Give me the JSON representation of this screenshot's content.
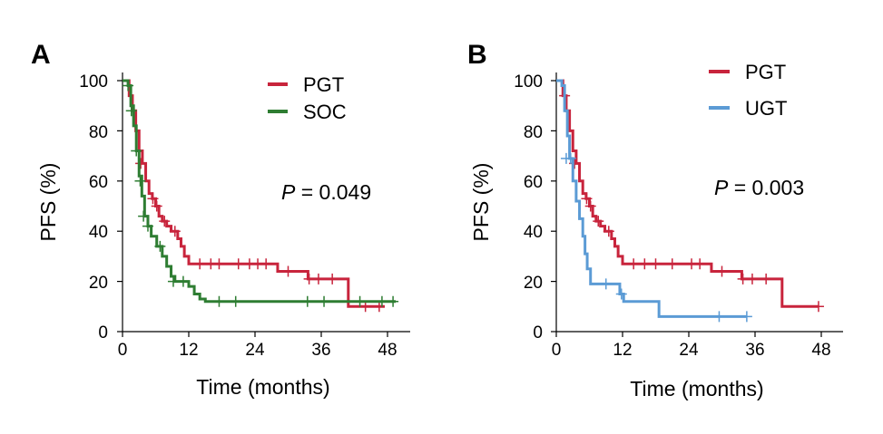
{
  "chart_data": [
    {
      "type": "line",
      "panel_label": "A",
      "xlabel": "Time (months)",
      "ylabel": "PFS (%)",
      "xticks": [
        0,
        12,
        24,
        36,
        48
      ],
      "yticks": [
        0,
        20,
        40,
        60,
        80,
        100
      ],
      "xlim": [
        0,
        52
      ],
      "ylim": [
        0,
        105
      ],
      "annotation": {
        "p_label": "P",
        "p_value": " = 0.049"
      },
      "legend_position": "top-right",
      "series": [
        {
          "name": "PGT",
          "color": "#c8243c",
          "steps": [
            [
              0,
              100
            ],
            [
              1.2,
              94
            ],
            [
              1.8,
              88
            ],
            [
              2.4,
              80
            ],
            [
              3,
              72
            ],
            [
              3.6,
              67
            ],
            [
              4.2,
              60
            ],
            [
              4.8,
              55
            ],
            [
              5.4,
              53
            ],
            [
              6,
              50
            ],
            [
              6.6,
              46
            ],
            [
              7.2,
              44
            ],
            [
              8,
              42
            ],
            [
              8.8,
              40
            ],
            [
              10,
              37
            ],
            [
              10.6,
              34
            ],
            [
              11.2,
              30
            ],
            [
              12,
              27
            ],
            [
              28,
              27
            ],
            [
              28.1,
              24
            ],
            [
              33.5,
              24
            ],
            [
              33.6,
              21
            ],
            [
              40.8,
              21
            ],
            [
              40.9,
              10
            ],
            [
              47.5,
              10
            ]
          ],
          "censor": [
            [
              3.3,
              67
            ],
            [
              5.5,
              53
            ],
            [
              6.2,
              50
            ],
            [
              7.6,
              44
            ],
            [
              9.5,
              40
            ],
            [
              14,
              27
            ],
            [
              16,
              27
            ],
            [
              17.5,
              27
            ],
            [
              21,
              27
            ],
            [
              23,
              27
            ],
            [
              24.5,
              27
            ],
            [
              26,
              27
            ],
            [
              30,
              24
            ],
            [
              33.8,
              21
            ],
            [
              35.5,
              21
            ],
            [
              38,
              21
            ],
            [
              44,
              10
            ],
            [
              46.5,
              10
            ]
          ]
        },
        {
          "name": "SOC",
          "color": "#2e7d32",
          "steps": [
            [
              0,
              100
            ],
            [
              1,
              98
            ],
            [
              1.5,
              90
            ],
            [
              2,
              82
            ],
            [
              2.5,
              72
            ],
            [
              3,
              62
            ],
            [
              3.5,
              54
            ],
            [
              4,
              46
            ],
            [
              4.6,
              42
            ],
            [
              5.2,
              38
            ],
            [
              6.2,
              34
            ],
            [
              7.2,
              30
            ],
            [
              8,
              26
            ],
            [
              8.8,
              22
            ],
            [
              9.5,
              20
            ],
            [
              12,
              18
            ],
            [
              13,
              15
            ],
            [
              14,
              13
            ],
            [
              15,
              12
            ],
            [
              49.5,
              12
            ]
          ],
          "censor": [
            [
              1,
              98
            ],
            [
              1.6,
              88
            ],
            [
              2.5,
              72
            ],
            [
              3.2,
              60
            ],
            [
              3.8,
              46
            ],
            [
              4.6,
              42
            ],
            [
              6.8,
              34
            ],
            [
              9.2,
              20
            ],
            [
              11,
              20
            ],
            [
              17.5,
              12
            ],
            [
              20.5,
              12
            ],
            [
              33.5,
              12
            ],
            [
              36.5,
              12
            ],
            [
              43,
              12
            ],
            [
              47,
              12
            ],
            [
              49,
              12
            ]
          ]
        }
      ]
    },
    {
      "type": "line",
      "panel_label": "B",
      "xlabel": "Time (months)",
      "ylabel": "PFS (%)",
      "xticks": [
        0,
        12,
        24,
        36,
        48
      ],
      "yticks": [
        0,
        20,
        40,
        60,
        80,
        100
      ],
      "xlim": [
        0,
        52
      ],
      "ylim": [
        0,
        105
      ],
      "annotation": {
        "p_label": "P",
        "p_value": " = 0.003"
      },
      "legend_position": "top-right",
      "series": [
        {
          "name": "PGT",
          "color": "#c8243c",
          "steps": [
            [
              0,
              100
            ],
            [
              1.2,
              94
            ],
            [
              1.8,
              88
            ],
            [
              2.4,
              80
            ],
            [
              3,
              72
            ],
            [
              3.6,
              67
            ],
            [
              4.2,
              60
            ],
            [
              4.8,
              55
            ],
            [
              5.4,
              53
            ],
            [
              6,
              50
            ],
            [
              6.6,
              46
            ],
            [
              7.2,
              44
            ],
            [
              8,
              42
            ],
            [
              8.8,
              40
            ],
            [
              10,
              37
            ],
            [
              10.6,
              34
            ],
            [
              11.2,
              30
            ],
            [
              12,
              27
            ],
            [
              28,
              27
            ],
            [
              28.1,
              24
            ],
            [
              33.5,
              24
            ],
            [
              33.6,
              21
            ],
            [
              40.8,
              21
            ],
            [
              40.9,
              10
            ],
            [
              47.5,
              10
            ]
          ],
          "censor": [
            [
              1.5,
              94
            ],
            [
              3.3,
              67
            ],
            [
              5.5,
              53
            ],
            [
              6.2,
              50
            ],
            [
              7.6,
              44
            ],
            [
              9.5,
              40
            ],
            [
              14,
              27
            ],
            [
              16,
              27
            ],
            [
              18,
              27
            ],
            [
              21,
              27
            ],
            [
              24.5,
              27
            ],
            [
              26,
              27
            ],
            [
              30,
              24
            ],
            [
              33.8,
              21
            ],
            [
              35.5,
              21
            ],
            [
              38,
              21
            ],
            [
              47.5,
              10
            ]
          ]
        },
        {
          "name": "UGT",
          "color": "#5b9bd5",
          "steps": [
            [
              0,
              100
            ],
            [
              1,
              98
            ],
            [
              1.5,
              88
            ],
            [
              2,
              78
            ],
            [
              2.4,
              69
            ],
            [
              3,
              60
            ],
            [
              3.6,
              52
            ],
            [
              4.2,
              45
            ],
            [
              4.8,
              38
            ],
            [
              5.2,
              31
            ],
            [
              5.6,
              25
            ],
            [
              6.2,
              19
            ],
            [
              10.5,
              19
            ],
            [
              11.5,
              15
            ],
            [
              12.2,
              12
            ],
            [
              18.5,
              12
            ],
            [
              18.6,
              6
            ],
            [
              34.5,
              6
            ]
          ],
          "censor": [
            [
              1.8,
              69
            ],
            [
              2.6,
              69
            ],
            [
              9,
              19
            ],
            [
              11.8,
              15
            ],
            [
              29.5,
              6
            ],
            [
              34.5,
              6
            ]
          ]
        }
      ]
    }
  ]
}
